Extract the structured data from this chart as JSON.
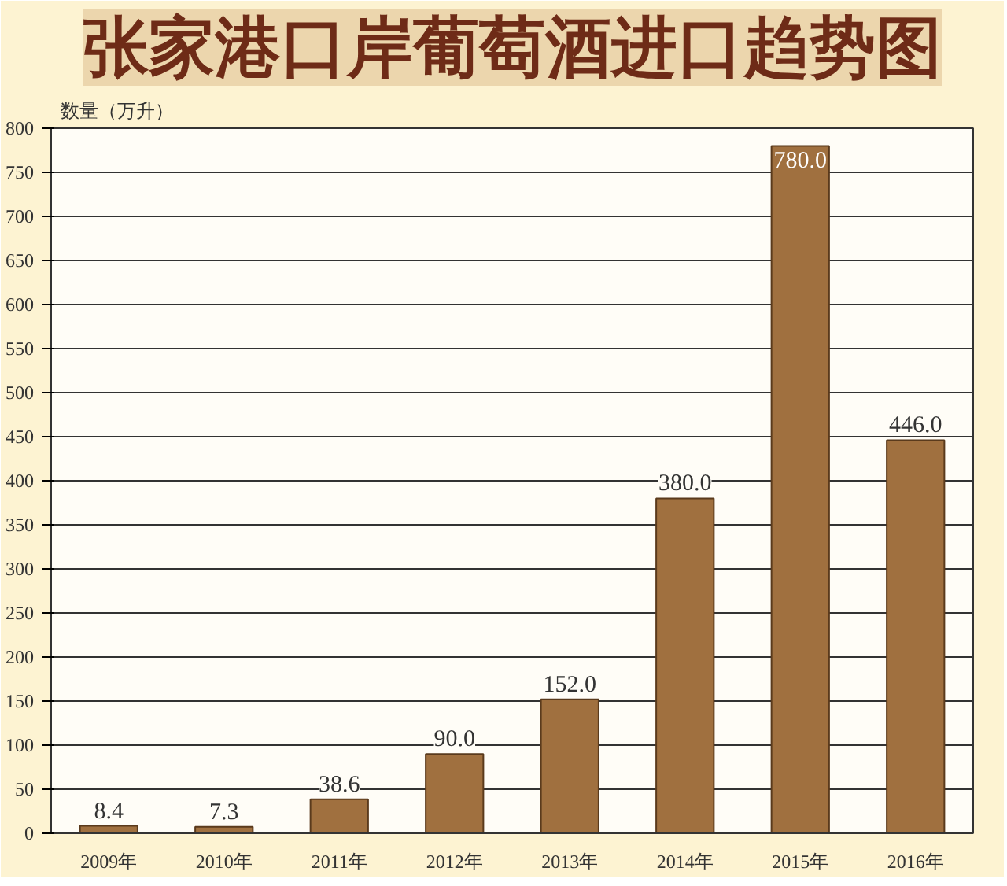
{
  "chart_data": {
    "type": "bar",
    "title": "张家港口岸葡萄酒进口趋势图",
    "ylabel": "数量（万升）",
    "categories": [
      "2009年",
      "2010年",
      "2011年",
      "2012年",
      "2013年",
      "2014年",
      "2015年",
      "2016年"
    ],
    "values": [
      8.4,
      7.3,
      38.6,
      90.0,
      152.0,
      380.0,
      780.0,
      446.0
    ],
    "value_labels": [
      "8.4",
      "7.3",
      "38.6",
      "90.0",
      "152.0",
      "380.0",
      "780.0",
      "446.0"
    ],
    "color": "#a0703f",
    "ylim": [
      0,
      800
    ],
    "yticks": [
      0,
      50,
      100,
      150,
      200,
      250,
      300,
      350,
      400,
      450,
      500,
      550,
      600,
      650,
      700,
      750,
      800
    ],
    "grid": "y"
  }
}
